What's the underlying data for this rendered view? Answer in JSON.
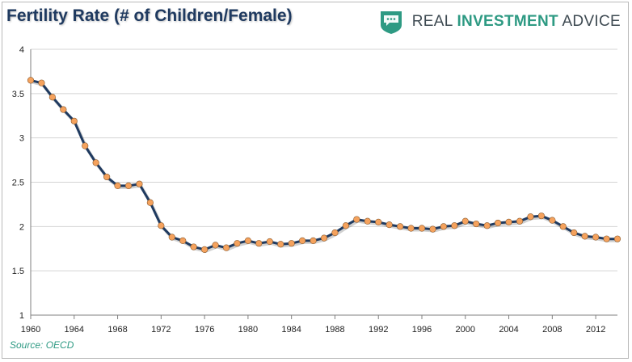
{
  "header": {
    "title": "Fertility Rate (# of Children/Female)"
  },
  "brand": {
    "part1": "REAL ",
    "part2": "INVESTMENT",
    "part3": " ADVICE",
    "icon": "chat-bubble-shield-icon",
    "accent_color": "#2e9a83"
  },
  "footer": {
    "source": "Source: OECD"
  },
  "chart_data": {
    "type": "line",
    "title": "Fertility Rate (# of Children/Female)",
    "xlabel": "",
    "ylabel": "",
    "xlim": [
      1960,
      2014
    ],
    "ylim": [
      1,
      4
    ],
    "y_ticks": [
      1,
      1.5,
      2,
      2.5,
      3,
      3.5,
      4
    ],
    "y_tick_labels": [
      "1",
      "1.5",
      "2",
      "2.5",
      "3",
      "3.5",
      "4"
    ],
    "x_ticks": [
      1960,
      1964,
      1968,
      1972,
      1976,
      1980,
      1984,
      1988,
      1992,
      1996,
      2000,
      2004,
      2008,
      2012
    ],
    "x_tick_labels": [
      "1960",
      "1964",
      "1968",
      "1972",
      "1976",
      "1980",
      "1984",
      "1988",
      "1992",
      "1996",
      "2000",
      "2004",
      "2008",
      "2012"
    ],
    "grid": true,
    "line_color": "#1f3a60",
    "marker_color": "#f5a25d",
    "series": [
      {
        "x": [
          1960,
          1961,
          1962,
          1963,
          1964,
          1965,
          1966,
          1967,
          1968,
          1969,
          1970,
          1971,
          1972,
          1973,
          1974,
          1975,
          1976,
          1977,
          1978,
          1979,
          1980,
          1981,
          1982,
          1983,
          1984,
          1985,
          1986,
          1987,
          1988,
          1989,
          1990,
          1991,
          1992,
          1993,
          1994,
          1995,
          1996,
          1997,
          1998,
          1999,
          2000,
          2001,
          2002,
          2003,
          2004,
          2005,
          2006,
          2007,
          2008,
          2009,
          2010,
          2011,
          2012,
          2013,
          2014
        ],
        "values": [
          3.65,
          3.62,
          3.46,
          3.32,
          3.19,
          2.91,
          2.72,
          2.56,
          2.46,
          2.46,
          2.48,
          2.27,
          2.01,
          1.88,
          1.84,
          1.77,
          1.74,
          1.79,
          1.76,
          1.81,
          1.84,
          1.81,
          1.83,
          1.8,
          1.81,
          1.84,
          1.84,
          1.87,
          1.93,
          2.01,
          2.08,
          2.06,
          2.05,
          2.02,
          2.0,
          1.98,
          1.98,
          1.97,
          2.0,
          2.01,
          2.06,
          2.03,
          2.01,
          2.04,
          2.05,
          2.06,
          2.11,
          2.12,
          2.07,
          2.0,
          1.93,
          1.89,
          1.88,
          1.86,
          1.86
        ]
      }
    ]
  }
}
